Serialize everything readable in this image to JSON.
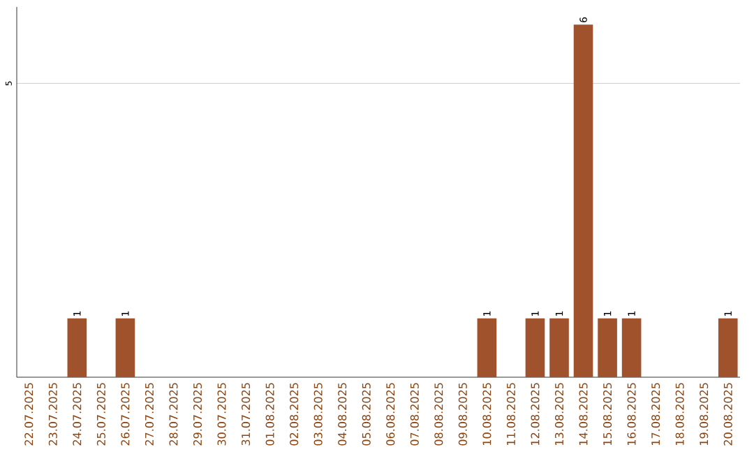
{
  "chart_data": {
    "type": "bar",
    "categories": [
      "22.07.2025",
      "23.07.2025",
      "24.07.2025",
      "25.07.2025",
      "26.07.2025",
      "27.07.2025",
      "28.07.2025",
      "29.07.2025",
      "30.07.2025",
      "31.07.2025",
      "01.08.2025",
      "02.08.2025",
      "03.08.2025",
      "04.08.2025",
      "05.08.2025",
      "06.08.2025",
      "07.08.2025",
      "08.08.2025",
      "09.08.2025",
      "10.08.2025",
      "11.08.2025",
      "12.08.2025",
      "13.08.2025",
      "14.08.2025",
      "15.08.2025",
      "16.08.2025",
      "17.08.2025",
      "18.08.2025",
      "19.08.2025",
      "20.08.2025"
    ],
    "values": [
      0,
      0,
      1,
      0,
      1,
      0,
      0,
      0,
      0,
      0,
      0,
      0,
      0,
      0,
      0,
      0,
      0,
      0,
      0,
      1,
      0,
      1,
      1,
      6,
      1,
      1,
      0,
      0,
      0,
      1
    ],
    "value_labels": [
      null,
      null,
      "1",
      null,
      "1",
      null,
      null,
      null,
      null,
      null,
      null,
      null,
      null,
      null,
      null,
      null,
      null,
      null,
      null,
      "1",
      null,
      "1",
      "1",
      "6",
      "1",
      "1",
      null,
      null,
      null,
      "1"
    ],
    "color": "#a0522d",
    "ylim": [
      0,
      6.3
    ],
    "yticks": [
      5
    ],
    "grid": "y"
  }
}
